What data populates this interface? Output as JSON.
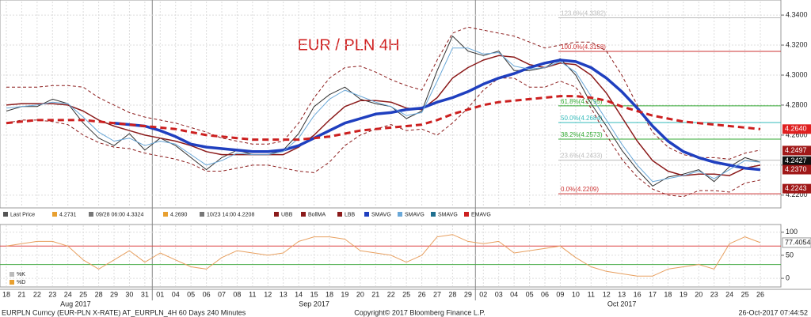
{
  "chart_data": [
    {
      "type": "line",
      "title": "EUR / PLN 4H",
      "categories": [
        "18",
        "21",
        "22",
        "23",
        "24",
        "25",
        "28",
        "29",
        "30",
        "31",
        "01",
        "04",
        "05",
        "06",
        "07",
        "08",
        "11",
        "12",
        "13",
        "14",
        "15",
        "18",
        "19",
        "20",
        "21",
        "22",
        "25",
        "26",
        "27",
        "28",
        "29",
        "02",
        "03",
        "04",
        "05",
        "06",
        "09",
        "10",
        "11",
        "12",
        "13",
        "16",
        "17",
        "18",
        "19",
        "20",
        "23",
        "24",
        "25",
        "26"
      ],
      "months": [
        "Aug 2017",
        "Sep 2017",
        "Oct 2017"
      ],
      "ylim": [
        4.212,
        4.349
      ],
      "yticks": [
        {
          "value": 4.22,
          "label": "4.2200"
        },
        {
          "value": 4.24,
          "label": "4.2400"
        },
        {
          "value": 4.26,
          "label": "4.2600"
        },
        {
          "value": 4.28,
          "label": "4.2800"
        },
        {
          "value": 4.3,
          "label": "4.3000"
        },
        {
          "value": 4.32,
          "label": "4.3200"
        },
        {
          "value": 4.34,
          "label": "4.3400"
        }
      ],
      "grid": true,
      "series": [
        {
          "color": "#333333",
          "width": 1,
          "dash": false,
          "values": [
            4.276,
            4.279,
            4.279,
            4.284,
            4.281,
            4.268,
            4.258,
            4.253,
            4.261,
            4.25,
            4.258,
            4.253,
            4.245,
            4.237,
            4.245,
            4.25,
            4.247,
            4.247,
            4.25,
            4.261,
            4.279,
            4.287,
            4.292,
            4.284,
            4.281,
            4.279,
            4.271,
            4.276,
            4.303,
            4.326,
            4.316,
            4.313,
            4.316,
            4.303,
            4.303,
            4.305,
            4.311,
            4.3,
            4.281,
            4.266,
            4.25,
            4.237,
            4.226,
            4.232,
            4.234,
            4.237,
            4.229,
            4.239,
            4.245,
            4.242
          ]
        },
        {
          "color": "#8b1a1a",
          "width": 1,
          "dash": true,
          "values": [
            4.292,
            4.292,
            4.292,
            4.293,
            4.293,
            4.292,
            4.285,
            4.28,
            4.275,
            4.272,
            4.27,
            4.268,
            4.265,
            4.262,
            4.258,
            4.256,
            4.254,
            4.254,
            4.256,
            4.268,
            4.285,
            4.298,
            4.305,
            4.306,
            4.302,
            4.297,
            4.293,
            4.29,
            4.31,
            4.328,
            4.332,
            4.33,
            4.328,
            4.326,
            4.322,
            4.318,
            4.32,
            4.322,
            4.322,
            4.316,
            4.3,
            4.28,
            4.262,
            4.252,
            4.247,
            4.245,
            4.245,
            4.244,
            4.248,
            4.25
          ]
        },
        {
          "color": "#8b1a1a",
          "width": 1.5,
          "dash": false,
          "values": [
            4.28,
            4.281,
            4.281,
            4.281,
            4.28,
            4.276,
            4.27,
            4.266,
            4.263,
            4.26,
            4.258,
            4.256,
            4.253,
            4.249,
            4.247,
            4.247,
            4.247,
            4.247,
            4.247,
            4.252,
            4.26,
            4.27,
            4.279,
            4.283,
            4.283,
            4.282,
            4.278,
            4.277,
            4.285,
            4.298,
            4.305,
            4.31,
            4.313,
            4.312,
            4.307,
            4.305,
            4.308,
            4.307,
            4.3,
            4.288,
            4.272,
            4.256,
            4.243,
            4.236,
            4.233,
            4.234,
            4.234,
            4.233,
            4.238,
            4.24
          ]
        },
        {
          "color": "#8b1a1a",
          "width": 1,
          "dash": true,
          "values": [
            4.268,
            4.27,
            4.27,
            4.269,
            4.267,
            4.26,
            4.255,
            4.252,
            4.251,
            4.248,
            4.246,
            4.244,
            4.241,
            4.236,
            4.236,
            4.238,
            4.24,
            4.24,
            4.238,
            4.236,
            4.235,
            4.242,
            4.253,
            4.26,
            4.264,
            4.267,
            4.263,
            4.264,
            4.26,
            4.268,
            4.278,
            4.29,
            4.298,
            4.298,
            4.292,
            4.292,
            4.296,
            4.292,
            4.278,
            4.26,
            4.244,
            4.232,
            4.224,
            4.22,
            4.219,
            4.223,
            4.223,
            4.222,
            4.228,
            4.23
          ]
        },
        {
          "color": "#1f3fbf",
          "width": 3.5,
          "dash": false,
          "values": [
            null,
            null,
            null,
            null,
            null,
            null,
            null,
            4.268,
            4.267,
            4.266,
            4.263,
            4.259,
            4.254,
            4.252,
            4.251,
            4.25,
            4.249,
            4.249,
            4.25,
            4.253,
            4.258,
            4.263,
            4.268,
            4.271,
            4.274,
            4.275,
            4.277,
            4.278,
            4.282,
            4.285,
            4.289,
            4.294,
            4.298,
            4.301,
            4.305,
            4.308,
            4.31,
            4.309,
            4.305,
            4.298,
            4.289,
            4.278,
            4.266,
            4.256,
            4.249,
            4.245,
            4.242,
            4.24,
            4.238,
            4.237
          ]
        },
        {
          "color": "#6aa8d8",
          "width": 1,
          "dash": false,
          "values": [
            4.278,
            4.279,
            4.28,
            4.282,
            4.281,
            4.272,
            4.262,
            4.256,
            4.258,
            4.253,
            4.256,
            4.254,
            4.247,
            4.24,
            4.243,
            4.248,
            4.247,
            4.247,
            4.249,
            4.258,
            4.273,
            4.284,
            4.29,
            4.286,
            4.282,
            4.279,
            4.273,
            4.275,
            4.296,
            4.318,
            4.318,
            4.314,
            4.315,
            4.306,
            4.304,
            4.305,
            4.309,
            4.302,
            4.286,
            4.27,
            4.254,
            4.24,
            4.229,
            4.231,
            4.233,
            4.236,
            4.231,
            4.237,
            4.243,
            4.242
          ]
        },
        {
          "color": "#cc1f1f",
          "width": 3,
          "dash": true,
          "values": [
            4.268,
            4.269,
            4.27,
            4.27,
            4.27,
            4.27,
            4.269,
            4.268,
            4.267,
            4.266,
            4.265,
            4.264,
            4.262,
            4.26,
            4.259,
            4.258,
            4.257,
            4.257,
            4.257,
            4.257,
            4.258,
            4.259,
            4.261,
            4.263,
            4.264,
            4.265,
            4.266,
            4.267,
            4.27,
            4.274,
            4.277,
            4.28,
            4.282,
            4.283,
            4.284,
            4.285,
            4.286,
            4.286,
            4.285,
            4.283,
            4.279,
            4.276,
            4.273,
            4.271,
            4.269,
            4.268,
            4.267,
            4.266,
            4.265,
            4.264
          ]
        }
      ],
      "levels": [
        {
          "value": 4.3382,
          "label": "123.6%(4.3382)",
          "color": "#bbbbbb"
        },
        {
          "value": 4.3158,
          "label": "100.0%(4.3158)",
          "color": "#cc3333"
        },
        {
          "value": 4.2795,
          "label": "61.8%(4.2795)",
          "color": "#33aa33"
        },
        {
          "value": 4.2684,
          "label": "50.0%(4.2684)",
          "color": "#33bbbb"
        },
        {
          "value": 4.2573,
          "label": "38.2%(4.2573)",
          "color": "#33aa33"
        },
        {
          "value": 4.2433,
          "label": "23.6%(4.2433)",
          "color": "#bbbbbb"
        },
        {
          "value": 4.2209,
          "label": "0.0%(4.2209)",
          "color": "#cc3333"
        }
      ],
      "tags": [
        {
          "value": 4.264,
          "label": "4.2640",
          "color": "#e02020"
        },
        {
          "value": 4.2497,
          "label": "4.2497",
          "color": "#a01818"
        },
        {
          "value": 4.2427,
          "label": "4.2427",
          "color": "#111111"
        },
        {
          "value": 4.237,
          "label": "4.2370",
          "color": "#a01818"
        },
        {
          "value": 4.2243,
          "label": "4.2243",
          "color": "#a01818"
        }
      ],
      "legend": [
        {
          "label": "Last Price",
          "color": "#555555"
        },
        {
          "label": "4.2731",
          "color": "#e8a030"
        },
        {
          "label": "09/28 06:00 4.3324",
          "color": "#777777"
        },
        {
          "label": "4.2690",
          "color": "#e8a030"
        },
        {
          "label": "10/23 14:00 4.2208",
          "color": "#777777"
        },
        {
          "label": "UBB",
          "color": "#8b1a1a"
        },
        {
          "label": "BollMA",
          "color": "#8b1a1a"
        },
        {
          "label": "LBB",
          "color": "#8b1a1a"
        },
        {
          "label": "SMAVG",
          "color": "#1f3fbf"
        },
        {
          "label": "SMAVG",
          "color": "#6aa8d8"
        },
        {
          "label": "SMAVG",
          "color": "#1f6f8f"
        },
        {
          "label": "EMAVG",
          "color": "#cc1f1f"
        }
      ]
    },
    {
      "type": "line",
      "ylim": [
        -17,
        115
      ],
      "yticks": [
        0,
        50,
        100
      ],
      "levels": [
        {
          "value": 70,
          "color": "#dd4444"
        },
        {
          "value": 30,
          "color": "#44aa44"
        }
      ],
      "series": [
        {
          "color": "#e8a060",
          "values": [
            70,
            75,
            80,
            80,
            70,
            40,
            20,
            40,
            60,
            35,
            55,
            40,
            25,
            20,
            45,
            60,
            55,
            50,
            55,
            80,
            90,
            90,
            85,
            60,
            55,
            50,
            35,
            50,
            90,
            95,
            80,
            75,
            80,
            55,
            60,
            65,
            70,
            45,
            25,
            15,
            10,
            5,
            5,
            20,
            25,
            30,
            20,
            75,
            90,
            77.4054
          ]
        }
      ],
      "legend": [
        {
          "label": "%K",
          "color": "#bbbbbb"
        },
        {
          "label": "%D",
          "color": "#e8a030"
        }
      ]
    }
  ],
  "footer": {
    "left": "EURPLN Curncy (EUR-PLN X-RATE) AT_EURPLN_4H 60 Days 240 Minutes",
    "center": "Copyright© 2017 Bloomberg Finance L.P.",
    "right": "26-Oct-2017 07:44:52"
  }
}
